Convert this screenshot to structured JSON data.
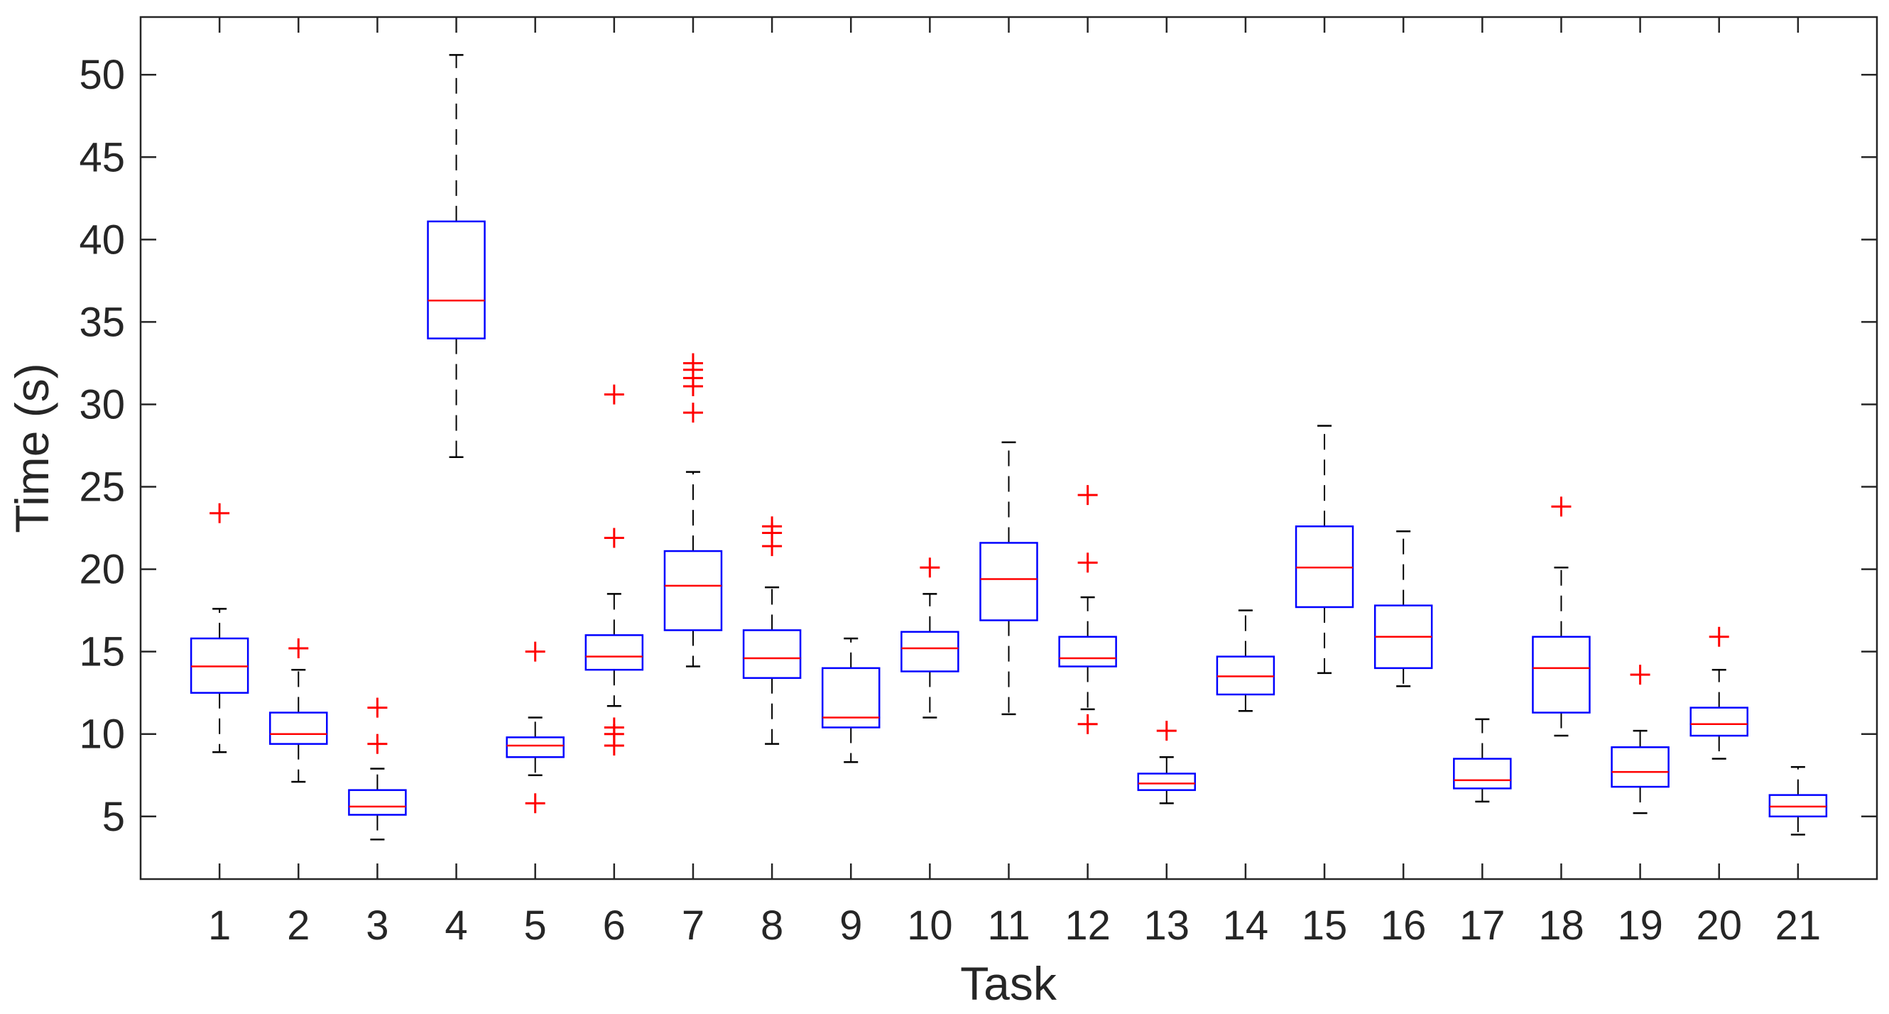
{
  "chart_data": {
    "type": "box",
    "title": "",
    "xlabel": "Task",
    "ylabel": "Time (s)",
    "categories": [
      "1",
      "2",
      "3",
      "4",
      "5",
      "6",
      "7",
      "8",
      "9",
      "10",
      "11",
      "12",
      "13",
      "14",
      "15",
      "16",
      "17",
      "18",
      "19",
      "20",
      "21"
    ],
    "yticks": [
      5,
      10,
      15,
      20,
      25,
      30,
      35,
      40,
      45,
      50
    ],
    "ylim": [
      1.2,
      53.5
    ],
    "grid": false,
    "legend": "none",
    "colors": {
      "box": "#0000ff",
      "median": "#ff0000",
      "whisker": "#000000",
      "outlier": "#ff0000",
      "axis": "#262626"
    },
    "boxes": [
      {
        "task": "1",
        "whisker_low": 8.9,
        "q1": 12.5,
        "median": 14.1,
        "q3": 15.8,
        "whisker_high": 17.6,
        "outliers": [
          23.4
        ]
      },
      {
        "task": "2",
        "whisker_low": 7.1,
        "q1": 9.4,
        "median": 10.0,
        "q3": 11.3,
        "whisker_high": 13.9,
        "outliers": [
          15.2
        ]
      },
      {
        "task": "3",
        "whisker_low": 3.6,
        "q1": 5.1,
        "median": 5.6,
        "q3": 6.6,
        "whisker_high": 7.9,
        "outliers": [
          9.4,
          11.6
        ]
      },
      {
        "task": "4",
        "whisker_low": 26.8,
        "q1": 34.0,
        "median": 36.3,
        "q3": 41.1,
        "whisker_high": 51.2,
        "outliers": []
      },
      {
        "task": "5",
        "whisker_low": 7.5,
        "q1": 8.6,
        "median": 9.3,
        "q3": 9.8,
        "whisker_high": 11.0,
        "outliers": [
          5.8,
          15.0
        ]
      },
      {
        "task": "6",
        "whisker_low": 11.7,
        "q1": 13.9,
        "median": 14.7,
        "q3": 16.0,
        "whisker_high": 18.5,
        "outliers": [
          9.3,
          10.0,
          10.4,
          21.9,
          30.6
        ]
      },
      {
        "task": "7",
        "whisker_low": 14.1,
        "q1": 16.3,
        "median": 19.0,
        "q3": 21.1,
        "whisker_high": 25.9,
        "outliers": [
          29.5,
          31.1,
          31.6,
          32.1,
          32.5
        ]
      },
      {
        "task": "8",
        "whisker_low": 9.4,
        "q1": 13.4,
        "median": 14.6,
        "q3": 16.3,
        "whisker_high": 18.9,
        "outliers": [
          21.4,
          22.2,
          22.6
        ]
      },
      {
        "task": "9",
        "whisker_low": 8.3,
        "q1": 10.4,
        "median": 11.0,
        "q3": 14.0,
        "whisker_high": 15.8,
        "outliers": []
      },
      {
        "task": "10",
        "whisker_low": 11.0,
        "q1": 13.8,
        "median": 15.2,
        "q3": 16.2,
        "whisker_high": 18.5,
        "outliers": [
          20.1
        ]
      },
      {
        "task": "11",
        "whisker_low": 11.2,
        "q1": 16.9,
        "median": 19.4,
        "q3": 21.6,
        "whisker_high": 27.7,
        "outliers": []
      },
      {
        "task": "12",
        "whisker_low": 11.5,
        "q1": 14.1,
        "median": 14.6,
        "q3": 15.9,
        "whisker_high": 18.3,
        "outliers": [
          10.6,
          20.4,
          24.5
        ]
      },
      {
        "task": "13",
        "whisker_low": 5.8,
        "q1": 6.6,
        "median": 7.0,
        "q3": 7.6,
        "whisker_high": 8.6,
        "outliers": [
          10.2
        ]
      },
      {
        "task": "14",
        "whisker_low": 11.4,
        "q1": 12.4,
        "median": 13.5,
        "q3": 14.7,
        "whisker_high": 17.5,
        "outliers": []
      },
      {
        "task": "15",
        "whisker_low": 13.7,
        "q1": 17.7,
        "median": 20.1,
        "q3": 22.6,
        "whisker_high": 28.7,
        "outliers": []
      },
      {
        "task": "16",
        "whisker_low": 12.9,
        "q1": 14.0,
        "median": 15.9,
        "q3": 17.8,
        "whisker_high": 22.3,
        "outliers": []
      },
      {
        "task": "17",
        "whisker_low": 5.9,
        "q1": 6.7,
        "median": 7.2,
        "q3": 8.5,
        "whisker_high": 10.9,
        "outliers": []
      },
      {
        "task": "18",
        "whisker_low": 9.9,
        "q1": 11.3,
        "median": 14.0,
        "q3": 15.9,
        "whisker_high": 20.1,
        "outliers": [
          23.8
        ]
      },
      {
        "task": "19",
        "whisker_low": 5.2,
        "q1": 6.8,
        "median": 7.7,
        "q3": 9.2,
        "whisker_high": 10.2,
        "outliers": [
          13.6
        ]
      },
      {
        "task": "20",
        "whisker_low": 8.5,
        "q1": 9.9,
        "median": 10.6,
        "q3": 11.6,
        "whisker_high": 13.9,
        "outliers": [
          15.9
        ]
      },
      {
        "task": "21",
        "whisker_low": 3.9,
        "q1": 5.0,
        "median": 5.6,
        "q3": 6.3,
        "whisker_high": 8.0,
        "outliers": []
      }
    ]
  }
}
